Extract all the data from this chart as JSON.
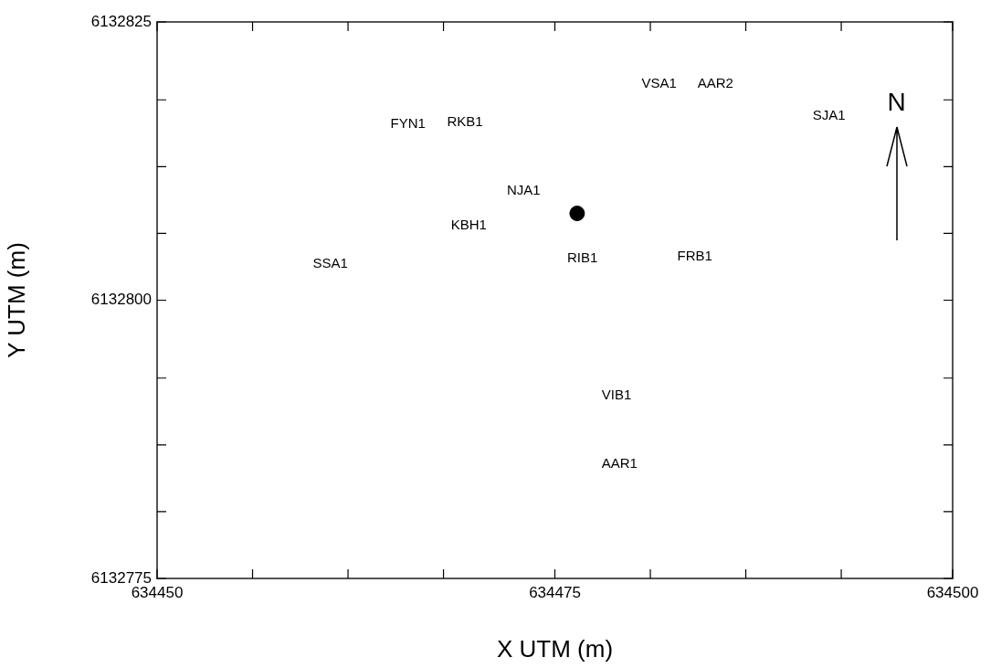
{
  "chart_data": {
    "type": "scatter",
    "xlabel": "X UTM (m)",
    "ylabel": "Y UTM (m)",
    "xlim": [
      634450,
      634500
    ],
    "ylim": [
      6132775,
      6132825
    ],
    "xticks": [
      634450,
      {
        "value": 634456,
        "label": null
      },
      {
        "value": 634462,
        "label": null
      },
      {
        "value": 634468,
        "label": null
      },
      634475,
      {
        "value": 634481,
        "label": null
      },
      {
        "value": 634487,
        "label": null
      },
      {
        "value": 634493,
        "label": null
      },
      634500
    ],
    "yticks": [
      6132775,
      {
        "value": 6132781,
        "label": null
      },
      {
        "value": 6132787,
        "label": null
      },
      {
        "value": 6132793,
        "label": null
      },
      6132800,
      {
        "value": 6132806,
        "label": null
      },
      {
        "value": 6132812,
        "label": null
      },
      {
        "value": 6132818,
        "label": null
      },
      6132825
    ],
    "series": [
      {
        "color": "#000000",
        "x": [
          634476.4
        ],
        "values": [
          6132807.8
        ]
      }
    ],
    "marker": "circle",
    "grid": false,
    "legend": false,
    "annotations": [
      "FYN1",
      "RKB1",
      "NJA1",
      "KBH1",
      "SSA1",
      "VSA1",
      "AAR2",
      "SJA1",
      "RIB1",
      "FRB1",
      "VIB1",
      "AAR1",
      "N"
    ]
  }
}
